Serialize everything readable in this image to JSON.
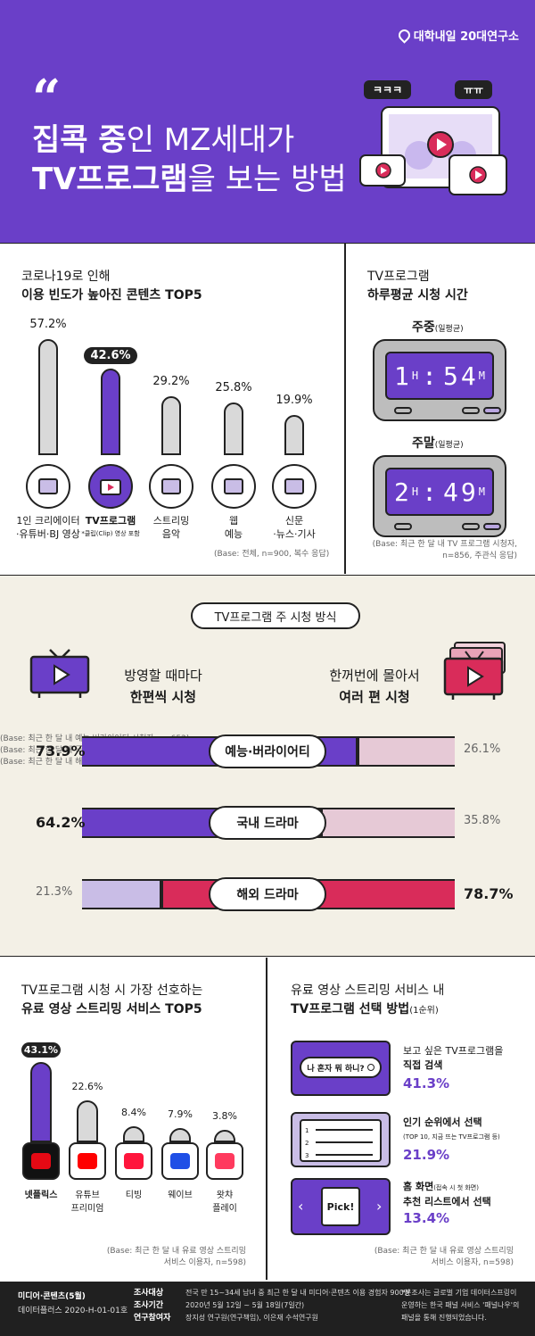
{
  "header": {
    "brand": "대학내일 20대연구소",
    "quote_mark": "“",
    "title_line1_bold1": "집콕 중",
    "title_line1_rest": "인 MZ세대가",
    "title_line2_bold": "TV프로그램",
    "title_line2_rest": "을 보는 방법",
    "bubble_left": "ㅋㅋㅋ",
    "bubble_right": "ㅠㅠ"
  },
  "top5_contents": {
    "title_line1": "코로나19로 인해",
    "title_line2": "이용 빈도가 높아진 콘텐츠 TOP5",
    "items": [
      {
        "pct": "57.2%",
        "label1": "1인 크리에이터",
        "label2": "·유튜버·BJ 영상",
        "value": 57.2
      },
      {
        "pct": "42.6%",
        "label1": "TV프로그램",
        "label2": "*클립(Clip) 영상 포함",
        "value": 42.6
      },
      {
        "pct": "29.2%",
        "label1": "스트리밍",
        "label2": "음악",
        "value": 29.2
      },
      {
        "pct": "25.8%",
        "label1": "웹",
        "label2": "예능",
        "value": 25.8
      },
      {
        "pct": "19.9%",
        "label1": "신문",
        "label2": "·뉴스·기사",
        "value": 19.9
      }
    ],
    "base": "(Base: 전체, n=900, 복수 응답)"
  },
  "watch_time": {
    "title_line1": "TV프로그램",
    "title_line2": "하루평균 시청 시간",
    "weekday_label": "주중",
    "weekday_sub": "(일평균)",
    "weekday_h": "1",
    "weekday_m": "54",
    "weekend_label": "주말",
    "weekend_sub": "(일평균)",
    "weekend_h": "2",
    "weekend_m": "49",
    "unit_h": "H",
    "unit_m": "M",
    "base1": "(Base: 최근 한 달 내 TV 프로그램 시청자,",
    "base2": "n=856, 주관식 응답)"
  },
  "viewing_mode": {
    "pill": "TV프로그램 주 시청 방식",
    "left_line1": "방영할 때마다",
    "left_line2": "한편씩 시청",
    "right_line1": "한꺼번에 몰아서",
    "right_line2": "여러 편 시청",
    "rows": [
      {
        "genre": "예능·버라이어티",
        "left": "73.9%",
        "right": "26.1%",
        "left_value": 73.9,
        "base": "(Base: 최근 한 달 내 예능·버라이어티 시청자, n=652)"
      },
      {
        "genre": "국내 드라마",
        "left": "64.2%",
        "right": "35.8%",
        "left_value": 64.2,
        "base": "(Base: 최근 한 달 내 국내 드라마 시청자, n=514)"
      },
      {
        "genre": "해외 드라마",
        "left": "21.3%",
        "right": "78.7%",
        "left_value": 21.3,
        "base": "(Base: 최근 한 달 내 해외 드라마 시청자, n=108)"
      }
    ]
  },
  "ott_top5": {
    "title_line1": "TV프로그램 시청 시 가장 선호하는",
    "title_line2": "유료 영상 스트리밍 서비스 TOP5",
    "items": [
      {
        "pct": "43.1%",
        "label1": "넷플릭스",
        "label2": "",
        "value": 43.1,
        "icon": "netflix-icon"
      },
      {
        "pct": "22.6%",
        "label1": "유튜브",
        "label2": "프리미엄",
        "value": 22.6,
        "icon": "youtube-icon"
      },
      {
        "pct": "8.4%",
        "label1": "티빙",
        "label2": "",
        "value": 8.4,
        "icon": "tving-icon"
      },
      {
        "pct": "7.9%",
        "label1": "웨이브",
        "label2": "",
        "value": 7.9,
        "icon": "wavve-icon"
      },
      {
        "pct": "3.8%",
        "label1": "왓챠",
        "label2": "플레이",
        "value": 3.8,
        "icon": "watcha-icon"
      }
    ],
    "base1": "(Base: 최근 한 달 내 유료 영상 스트리밍",
    "base2": "서비스 이용자, n=598)"
  },
  "select_method": {
    "title_line1": "유료 영상 스트리밍 서비스 내",
    "title_line2": "TV프로그램 선택 방법",
    "title_sub": "(1순위)",
    "search_text": "나 혼자 뭐 하니?",
    "items": [
      {
        "line1": "보고 싶은 TV프로그램을",
        "line2": "직접 검색",
        "sub": "",
        "pct": "41.3%"
      },
      {
        "line1": "인기 순위에서 선택",
        "line2": "",
        "sub": "(TOP 10, 지금 뜨는 TV프로그램 등)",
        "pct": "21.9%"
      },
      {
        "line1": "(접속 시 첫 화면)",
        "line2": "추천 리스트에서 선택",
        "line0": "홈 화면",
        "sub": "",
        "pct": "13.4%"
      }
    ],
    "pick": "Pick!",
    "list_nums": [
      "1",
      "2",
      "3"
    ],
    "base1": "(Base: 최근 한 달 내 유료 영상 스트리밍",
    "base2": "서비스 이용자, n=598)"
  },
  "footer": {
    "cat": "미디어·콘텐츠(5월)",
    "code": "데이터플러스 2020-H-01-01호",
    "k1": "조사대상",
    "v1": "전국 만 15~34세 남녀 중 최근 한 달 내 미디어·콘텐츠 이용 경험자 900명",
    "k2": "조사기간",
    "v2": "2020년 5월 12일 ~ 5월 18일(7일간)",
    "k3": "연구참여자",
    "v3": "장지성 연구원(연구책임), 이은재 수석연구원",
    "n1": "*본조사는 글로벌 기업 데이터스프링이",
    "n2": "운영하는 한국 패널 서비스 '패널나우'의",
    "n3": "패널을 통해 진행되었습니다."
  },
  "colors": {
    "purple": "#6a3fc8",
    "pink": "#d92c5a",
    "cream": "#f3f0e6"
  }
}
